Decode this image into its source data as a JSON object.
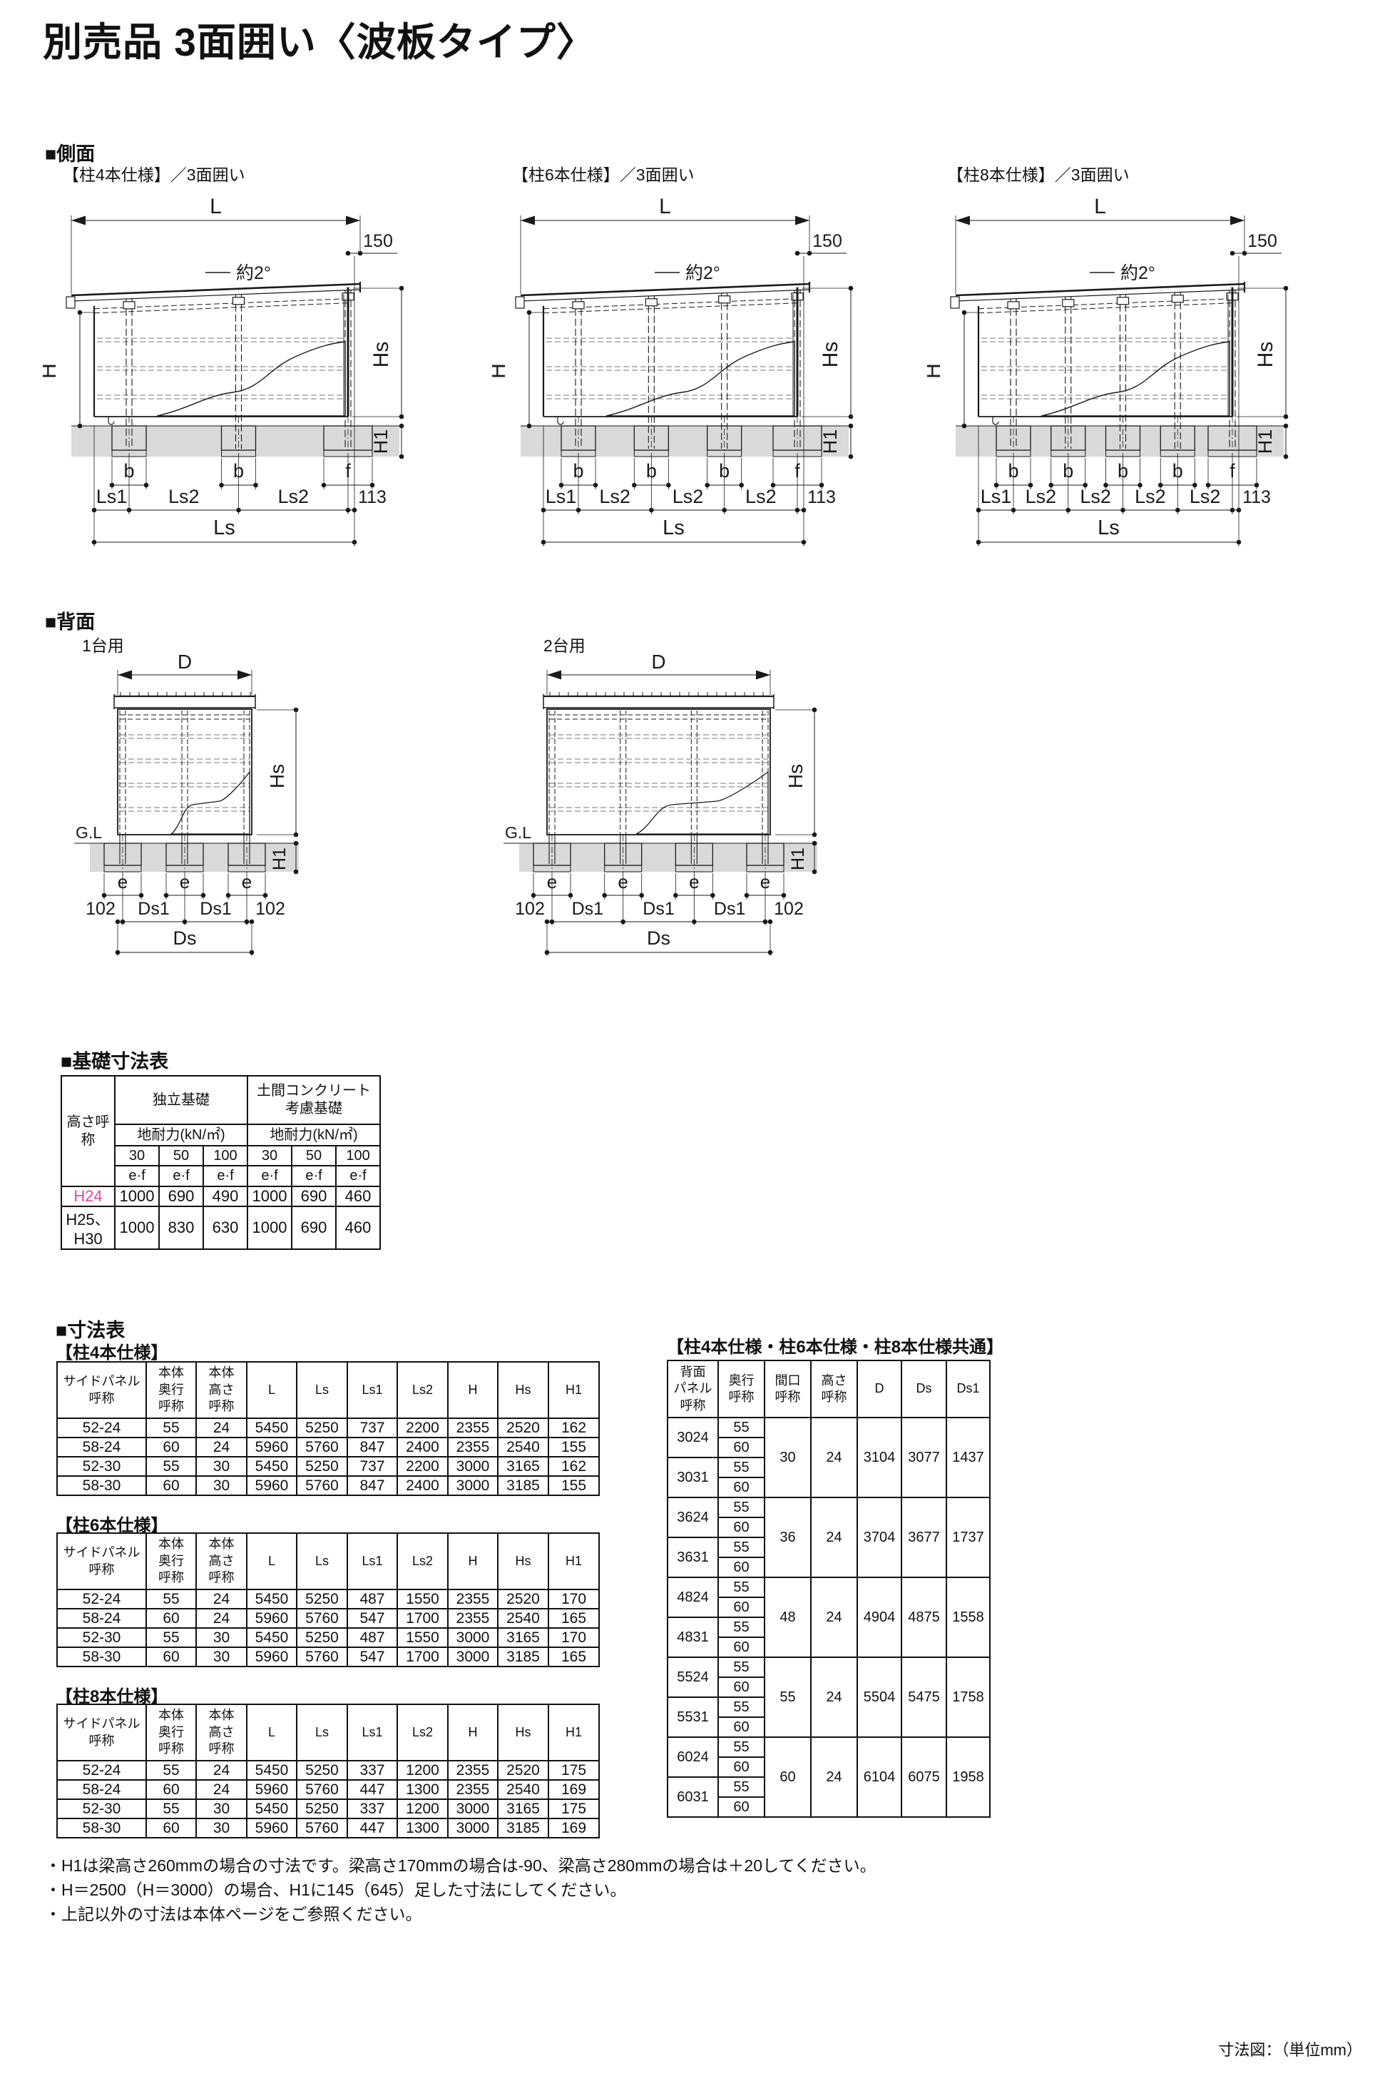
{
  "page": {
    "title": "別売品 3面囲い〈波板タイプ〉",
    "unit_note": "寸法図：（単位mm）"
  },
  "side_section": {
    "heading": "■側面",
    "dim_labels": {
      "length": "L",
      "overhang": "150",
      "slope": "約2°",
      "height": "H",
      "side_height": "Hs",
      "foundation_depth": "H1",
      "end_segment": "113",
      "total": "Ls"
    },
    "drawings": [
      {
        "label": "【柱4本仕様】／3面囲い",
        "post_count": 3,
        "block_labels": [
          "b",
          "b",
          "f"
        ],
        "segment_labels": [
          "Ls1",
          "Ls2",
          "Ls2"
        ]
      },
      {
        "label": "【柱6本仕様】／3面囲い",
        "post_count": 4,
        "block_labels": [
          "b",
          "b",
          "b",
          "f"
        ],
        "segment_labels": [
          "Ls1",
          "Ls2",
          "Ls2",
          "Ls2"
        ]
      },
      {
        "label": "【柱8本仕様】／3面囲い",
        "post_count": 5,
        "block_labels": [
          "b",
          "b",
          "b",
          "b",
          "f"
        ],
        "segment_labels": [
          "Ls1",
          "Ls2",
          "Ls2",
          "Ls2",
          "Ls2"
        ]
      }
    ]
  },
  "back_section": {
    "heading": "■背面",
    "dim_labels": {
      "width": "D",
      "ground_line": "G.L",
      "side_height": "Hs",
      "foundation_depth": "H1",
      "block": "e",
      "total": "Ds"
    },
    "drawings": [
      {
        "label": "1台用",
        "post_count": 3,
        "block_labels": [
          "e",
          "e",
          "e"
        ],
        "segment_labels": [
          "102",
          "Ds1",
          "Ds1",
          "102"
        ]
      },
      {
        "label": "2台用",
        "post_count": 4,
        "block_labels": [
          "e",
          "e",
          "e",
          "e"
        ],
        "segment_labels": [
          "102",
          "Ds1",
          "Ds1",
          "Ds1",
          "102"
        ]
      }
    ]
  },
  "foundation_section": {
    "heading": "■基礎寸法表",
    "table": {
      "corner_header": "高さ呼称",
      "groups": [
        {
          "title": "独立基礎",
          "subtitle": "地耐力(kN/㎡)",
          "loads": [
            "30",
            "50",
            "100"
          ],
          "unit": "e·f"
        },
        {
          "title": "土間コンクリート\n考慮基礎",
          "subtitle": "地耐力(kN/㎡)",
          "loads": [
            "30",
            "50",
            "100"
          ],
          "unit": "e·f"
        }
      ],
      "rows": [
        {
          "name": "H24",
          "highlight": true,
          "values": [
            "1000",
            "690",
            "490",
            "1000",
            "690",
            "460"
          ]
        },
        {
          "name": "H25、H30",
          "highlight": false,
          "values": [
            "1000",
            "830",
            "630",
            "1000",
            "690",
            "460"
          ]
        }
      ]
    }
  },
  "dimension_section": {
    "heading": "■寸法表",
    "spec_tables": [
      {
        "label": "【柱4本仕様】",
        "headers": [
          "サイドパネル\n呼称",
          "本体\n奥行\n呼称",
          "本体\n高さ\n呼称",
          "L",
          "Ls",
          "Ls1",
          "Ls2",
          "H",
          "Hs",
          "H1"
        ],
        "rows": [
          [
            "52-24",
            "55",
            "24",
            "5450",
            "5250",
            "737",
            "2200",
            "2355",
            "2520",
            "162"
          ],
          [
            "58-24",
            "60",
            "24",
            "5960",
            "5760",
            "847",
            "2400",
            "2355",
            "2540",
            "155"
          ],
          [
            "52-30",
            "55",
            "30",
            "5450",
            "5250",
            "737",
            "2200",
            "3000",
            "3165",
            "162"
          ],
          [
            "58-30",
            "60",
            "30",
            "5960",
            "5760",
            "847",
            "2400",
            "3000",
            "3185",
            "155"
          ]
        ]
      },
      {
        "label": "【柱6本仕様】",
        "headers": [
          "サイドパネル\n呼称",
          "本体\n奥行\n呼称",
          "本体\n高さ\n呼称",
          "L",
          "Ls",
          "Ls1",
          "Ls2",
          "H",
          "Hs",
          "H1"
        ],
        "rows": [
          [
            "52-24",
            "55",
            "24",
            "5450",
            "5250",
            "487",
            "1550",
            "2355",
            "2520",
            "170"
          ],
          [
            "58-24",
            "60",
            "24",
            "5960",
            "5760",
            "547",
            "1700",
            "2355",
            "2540",
            "165"
          ],
          [
            "52-30",
            "55",
            "30",
            "5450",
            "5250",
            "487",
            "1550",
            "3000",
            "3165",
            "170"
          ],
          [
            "58-30",
            "60",
            "30",
            "5960",
            "5760",
            "547",
            "1700",
            "3000",
            "3185",
            "165"
          ]
        ]
      },
      {
        "label": "【柱8本仕様】",
        "headers": [
          "サイドパネル\n呼称",
          "本体\n奥行\n呼称",
          "本体\n高さ\n呼称",
          "L",
          "Ls",
          "Ls1",
          "Ls2",
          "H",
          "Hs",
          "H1"
        ],
        "rows": [
          [
            "52-24",
            "55",
            "24",
            "5450",
            "5250",
            "337",
            "1200",
            "2355",
            "2520",
            "175"
          ],
          [
            "58-24",
            "60",
            "24",
            "5960",
            "5760",
            "447",
            "1300",
            "2355",
            "2540",
            "169"
          ],
          [
            "52-30",
            "55",
            "30",
            "5450",
            "5250",
            "337",
            "1200",
            "3000",
            "3165",
            "175"
          ],
          [
            "58-30",
            "60",
            "30",
            "5960",
            "5760",
            "447",
            "1300",
            "3000",
            "3185",
            "169"
          ]
        ]
      }
    ],
    "common_table": {
      "label": "【柱4本仕様・柱6本仕様・柱8本仕様共通】",
      "headers": [
        "背面\nパネル\n呼称",
        "奥行\n呼称",
        "間口\n呼称",
        "高さ\n呼称",
        "D",
        "Ds",
        "Ds1"
      ],
      "groups": [
        {
          "panels": [
            {
              "name": "3024",
              "depths": [
                "55",
                "60"
              ]
            },
            {
              "name": "3031",
              "depths": [
                "55",
                "60"
              ]
            }
          ],
          "width": "30",
          "height": "24",
          "d": "3104",
          "ds": "3077",
          "ds1": "1437"
        },
        {
          "panels": [
            {
              "name": "3624",
              "depths": [
                "55",
                "60"
              ]
            },
            {
              "name": "3631",
              "depths": [
                "55",
                "60"
              ]
            }
          ],
          "width": "36",
          "height": "24",
          "d": "3704",
          "ds": "3677",
          "ds1": "1737"
        },
        {
          "panels": [
            {
              "name": "4824",
              "depths": [
                "55",
                "60"
              ]
            },
            {
              "name": "4831",
              "depths": [
                "55",
                "60"
              ]
            }
          ],
          "width": "48",
          "height": "24",
          "d": "4904",
          "ds": "4875",
          "ds1": "1558"
        },
        {
          "panels": [
            {
              "name": "5524",
              "depths": [
                "55",
                "60"
              ]
            },
            {
              "name": "5531",
              "depths": [
                "55",
                "60"
              ]
            }
          ],
          "width": "55",
          "height": "24",
          "d": "5504",
          "ds": "5475",
          "ds1": "1758"
        },
        {
          "panels": [
            {
              "name": "6024",
              "depths": [
                "55",
                "60"
              ]
            },
            {
              "name": "6031",
              "depths": [
                "55",
                "60"
              ]
            }
          ],
          "width": "60",
          "height": "24",
          "d": "6104",
          "ds": "6075",
          "ds1": "1958"
        }
      ]
    },
    "footnotes": [
      "・H1は梁高さ260mmの場合の寸法です。梁高さ170mmの場合は-90、梁高さ280mmの場合は＋20してください。",
      "・H＝2500（H＝3000）の場合、H1に145（645）足した寸法にしてください。",
      "・上記以外の寸法は本体ページをご参照ください。"
    ]
  }
}
